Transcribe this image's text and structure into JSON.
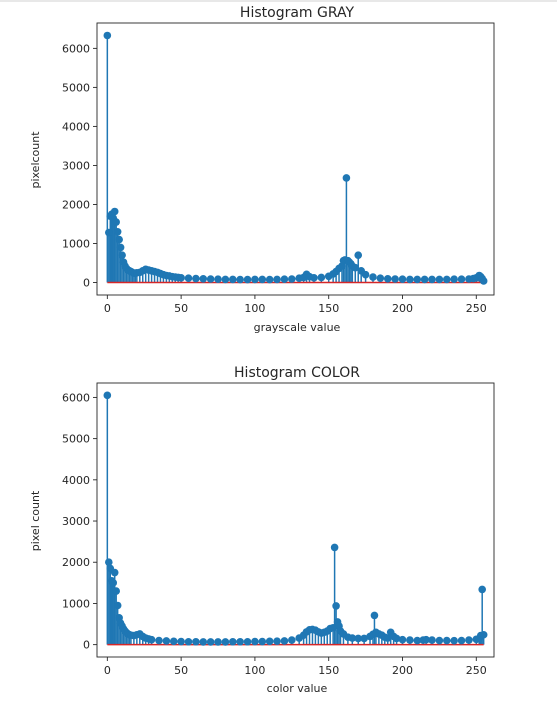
{
  "chart_data": [
    {
      "type": "stem",
      "title": "Histogram GRAY",
      "xlabel": "grayscale value",
      "ylabel": "pixelcount",
      "xlim": [
        -7,
        262
      ],
      "ylim": [
        -320,
        6650
      ],
      "xticks": [
        0,
        50,
        100,
        150,
        200,
        250
      ],
      "yticks": [
        0,
        1000,
        2000,
        3000,
        4000,
        5000,
        6000
      ],
      "marker_color": "#1f77b4",
      "baseline_color": "#d62728",
      "points": [
        [
          0,
          6330
        ],
        [
          1,
          1280
        ],
        [
          2,
          1700
        ],
        [
          3,
          1750
        ],
        [
          4,
          1650
        ],
        [
          5,
          1820
        ],
        [
          6,
          1550
        ],
        [
          7,
          1300
        ],
        [
          8,
          1100
        ],
        [
          9,
          900
        ],
        [
          10,
          700
        ],
        [
          11,
          520
        ],
        [
          12,
          420
        ],
        [
          13,
          360
        ],
        [
          14,
          320
        ],
        [
          15,
          300
        ],
        [
          16,
          280
        ],
        [
          17,
          260
        ],
        [
          18,
          240
        ],
        [
          19,
          240
        ],
        [
          20,
          250
        ],
        [
          22,
          260
        ],
        [
          24,
          300
        ],
        [
          26,
          340
        ],
        [
          28,
          320
        ],
        [
          30,
          300
        ],
        [
          32,
          280
        ],
        [
          34,
          260
        ],
        [
          36,
          230
        ],
        [
          38,
          200
        ],
        [
          40,
          180
        ],
        [
          42,
          170
        ],
        [
          44,
          150
        ],
        [
          46,
          140
        ],
        [
          48,
          130
        ],
        [
          50,
          120
        ],
        [
          55,
          110
        ],
        [
          60,
          100
        ],
        [
          65,
          95
        ],
        [
          70,
          90
        ],
        [
          75,
          85
        ],
        [
          80,
          80
        ],
        [
          85,
          80
        ],
        [
          90,
          75
        ],
        [
          95,
          75
        ],
        [
          100,
          80
        ],
        [
          105,
          80
        ],
        [
          110,
          75
        ],
        [
          115,
          80
        ],
        [
          120,
          85
        ],
        [
          125,
          90
        ],
        [
          130,
          110
        ],
        [
          133,
          130
        ],
        [
          135,
          210
        ],
        [
          137,
          150
        ],
        [
          140,
          120
        ],
        [
          145,
          130
        ],
        [
          150,
          160
        ],
        [
          153,
          220
        ],
        [
          155,
          280
        ],
        [
          157,
          360
        ],
        [
          159,
          420
        ],
        [
          160,
          560
        ],
        [
          161,
          580
        ],
        [
          162,
          2680
        ],
        [
          163,
          560
        ],
        [
          164,
          520
        ],
        [
          165,
          480
        ],
        [
          166,
          420
        ],
        [
          168,
          380
        ],
        [
          170,
          700
        ],
        [
          172,
          300
        ],
        [
          175,
          200
        ],
        [
          180,
          140
        ],
        [
          185,
          110
        ],
        [
          190,
          95
        ],
        [
          195,
          90
        ],
        [
          200,
          85
        ],
        [
          205,
          80
        ],
        [
          210,
          80
        ],
        [
          215,
          80
        ],
        [
          220,
          80
        ],
        [
          225,
          80
        ],
        [
          230,
          80
        ],
        [
          235,
          85
        ],
        [
          240,
          85
        ],
        [
          245,
          90
        ],
        [
          248,
          100
        ],
        [
          250,
          120
        ],
        [
          252,
          180
        ],
        [
          253,
          150
        ],
        [
          254,
          100
        ],
        [
          255,
          40
        ]
      ]
    },
    {
      "type": "stem",
      "title": "Histogram COLOR",
      "xlabel": "color value",
      "ylabel": "pixel count",
      "xlim": [
        -7,
        262
      ],
      "ylim": [
        -300,
        6350
      ],
      "xticks": [
        0,
        50,
        100,
        150,
        200,
        250
      ],
      "yticks": [
        0,
        1000,
        2000,
        3000,
        4000,
        5000,
        6000
      ],
      "marker_color": "#1f77b4",
      "baseline_color": "#d62728",
      "points": [
        [
          0,
          6050
        ],
        [
          1,
          2000
        ],
        [
          2,
          1850
        ],
        [
          3,
          1550
        ],
        [
          4,
          1500
        ],
        [
          5,
          1750
        ],
        [
          6,
          1300
        ],
        [
          7,
          950
        ],
        [
          8,
          650
        ],
        [
          9,
          520
        ],
        [
          10,
          450
        ],
        [
          11,
          380
        ],
        [
          12,
          330
        ],
        [
          13,
          290
        ],
        [
          14,
          260
        ],
        [
          15,
          240
        ],
        [
          16,
          230
        ],
        [
          18,
          220
        ],
        [
          20,
          240
        ],
        [
          22,
          260
        ],
        [
          24,
          200
        ],
        [
          26,
          160
        ],
        [
          28,
          140
        ],
        [
          30,
          120
        ],
        [
          35,
          100
        ],
        [
          40,
          90
        ],
        [
          45,
          80
        ],
        [
          50,
          75
        ],
        [
          55,
          70
        ],
        [
          60,
          70
        ],
        [
          65,
          65
        ],
        [
          70,
          65
        ],
        [
          75,
          65
        ],
        [
          80,
          65
        ],
        [
          85,
          70
        ],
        [
          90,
          70
        ],
        [
          95,
          70
        ],
        [
          100,
          75
        ],
        [
          105,
          75
        ],
        [
          110,
          80
        ],
        [
          115,
          85
        ],
        [
          120,
          90
        ],
        [
          125,
          110
        ],
        [
          130,
          160
        ],
        [
          133,
          230
        ],
        [
          135,
          310
        ],
        [
          137,
          360
        ],
        [
          139,
          370
        ],
        [
          141,
          350
        ],
        [
          143,
          310
        ],
        [
          145,
          280
        ],
        [
          147,
          300
        ],
        [
          149,
          330
        ],
        [
          151,
          390
        ],
        [
          153,
          410
        ],
        [
          154,
          2360
        ],
        [
          155,
          940
        ],
        [
          156,
          550
        ],
        [
          157,
          450
        ],
        [
          158,
          330
        ],
        [
          160,
          260
        ],
        [
          163,
          180
        ],
        [
          166,
          160
        ],
        [
          170,
          150
        ],
        [
          174,
          150
        ],
        [
          178,
          200
        ],
        [
          180,
          250
        ],
        [
          181,
          710
        ],
        [
          182,
          300
        ],
        [
          184,
          260
        ],
        [
          186,
          230
        ],
        [
          188,
          180
        ],
        [
          190,
          160
        ],
        [
          192,
          300
        ],
        [
          194,
          200
        ],
        [
          196,
          150
        ],
        [
          200,
          120
        ],
        [
          205,
          110
        ],
        [
          210,
          100
        ],
        [
          214,
          110
        ],
        [
          216,
          120
        ],
        [
          220,
          110
        ],
        [
          225,
          100
        ],
        [
          230,
          100
        ],
        [
          235,
          95
        ],
        [
          240,
          100
        ],
        [
          245,
          110
        ],
        [
          250,
          130
        ],
        [
          252,
          150
        ],
        [
          253,
          220
        ],
        [
          254,
          1340
        ],
        [
          255,
          240
        ]
      ]
    }
  ]
}
